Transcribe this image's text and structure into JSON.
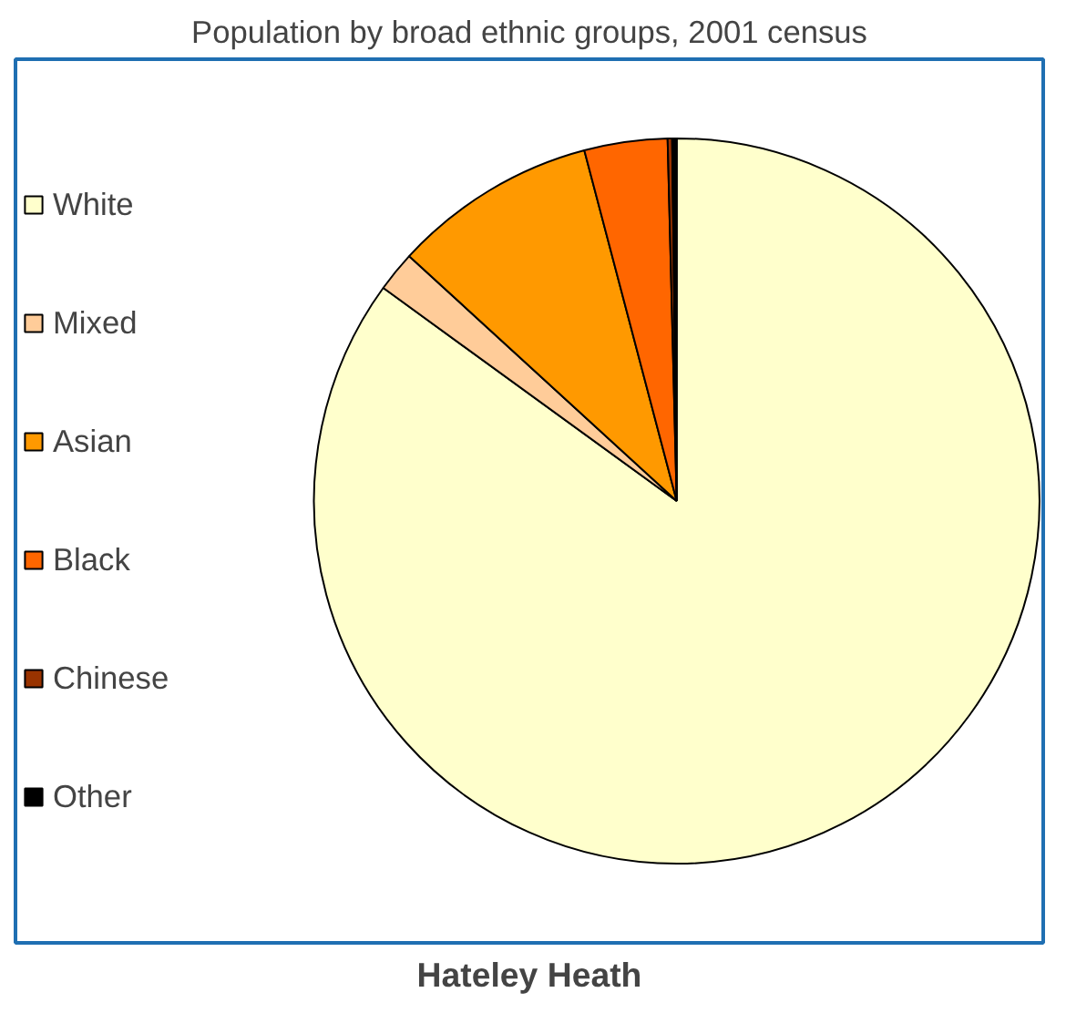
{
  "chart_data": {
    "type": "pie",
    "title": "Population by broad ethnic groups, 2001 census",
    "xlabel": "Hateley Heath",
    "categories": [
      "White",
      "Mixed",
      "Asian",
      "Black",
      "Chinese",
      "Other"
    ],
    "values": [
      85.0,
      1.8,
      9.1,
      3.7,
      0.2,
      0.2
    ],
    "colors": [
      "#ffffcc",
      "#ffcc99",
      "#ff9900",
      "#ff6600",
      "#993300",
      "#000000"
    ],
    "legend": "left"
  }
}
